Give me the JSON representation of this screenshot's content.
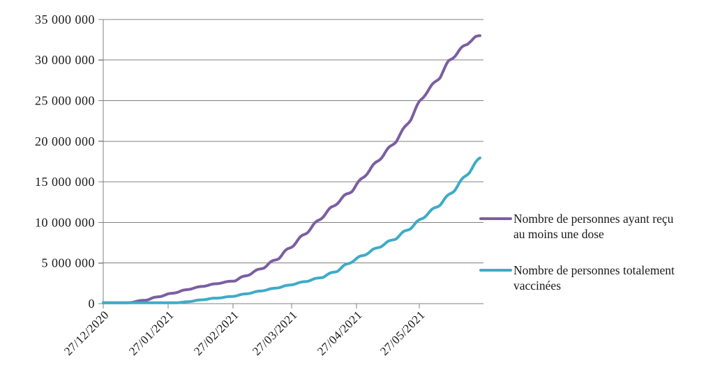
{
  "chart_data": {
    "type": "line",
    "title": "",
    "x_axis": {
      "tick_labels": [
        "27/12/2020",
        "27/01/2021",
        "27/02/2021",
        "27/03/2021",
        "27/04/2021",
        "27/05/2021"
      ],
      "start_date": "27/12/2020",
      "range_days": [
        0,
        180
      ]
    },
    "y_axis": {
      "min": 0,
      "max": 35000000,
      "step": 5000000,
      "tick_labels": [
        "0",
        "5 000 000",
        "10 000 000",
        "15 000 000",
        "20 000 000",
        "25 000 000",
        "30 000 000",
        "35 000 000"
      ],
      "gridlines": true
    },
    "legend": {
      "position": "right",
      "entries": [
        {
          "line1": "Nombre de personnes ayant reçu",
          "line2": "au moins une dose"
        },
        {
          "line1": "Nombre de personnes totalement",
          "line2": "vaccinées"
        }
      ]
    },
    "series": [
      {
        "name": "Nombre de personnes ayant reçu au moins une dose",
        "color": "#7B5EA3",
        "points": [
          [
            0,
            0
          ],
          [
            7,
            5000
          ],
          [
            10,
            45000
          ],
          [
            14,
            190000
          ],
          [
            17,
            320000
          ],
          [
            21,
            480000
          ],
          [
            24,
            700000
          ],
          [
            28,
            960000
          ],
          [
            31,
            1160000
          ],
          [
            35,
            1400000
          ],
          [
            42,
            1850000
          ],
          [
            49,
            2220000
          ],
          [
            56,
            2550000
          ],
          [
            63,
            2850000
          ],
          [
            70,
            3650000
          ],
          [
            77,
            4520000
          ],
          [
            84,
            5700000
          ],
          [
            91,
            7300000
          ],
          [
            98,
            9000000
          ],
          [
            105,
            10800000
          ],
          [
            112,
            12500000
          ],
          [
            119,
            14000000
          ],
          [
            126,
            16100000
          ],
          [
            133,
            18100000
          ],
          [
            140,
            20100000
          ],
          [
            147,
            22800000
          ],
          [
            151,
            24800000
          ],
          [
            154,
            25900000
          ],
          [
            158,
            27100000
          ],
          [
            161,
            28000000
          ],
          [
            165,
            29800000
          ],
          [
            168,
            30600000
          ],
          [
            172,
            31600000
          ],
          [
            175,
            32300000
          ],
          [
            178,
            32800000
          ],
          [
            180,
            33000000
          ]
        ]
      },
      {
        "name": "Nombre de personnes totalement vaccinées",
        "color": "#3EACC7",
        "points": [
          [
            0,
            0
          ],
          [
            10,
            0
          ],
          [
            17,
            1000
          ],
          [
            24,
            8000
          ],
          [
            31,
            45000
          ],
          [
            38,
            160000
          ],
          [
            45,
            400000
          ],
          [
            52,
            640000
          ],
          [
            56,
            720000
          ],
          [
            63,
            950000
          ],
          [
            70,
            1300000
          ],
          [
            77,
            1650000
          ],
          [
            84,
            2000000
          ],
          [
            91,
            2400000
          ],
          [
            98,
            2820000
          ],
          [
            105,
            3300000
          ],
          [
            112,
            4100000
          ],
          [
            119,
            5250000
          ],
          [
            126,
            6200000
          ],
          [
            133,
            7150000
          ],
          [
            140,
            8100000
          ],
          [
            147,
            9400000
          ],
          [
            151,
            10200000
          ],
          [
            154,
            10900000
          ],
          [
            158,
            11650000
          ],
          [
            161,
            12300000
          ],
          [
            165,
            13300000
          ],
          [
            168,
            14100000
          ],
          [
            172,
            15400000
          ],
          [
            175,
            16300000
          ],
          [
            178,
            17300000
          ],
          [
            180,
            17950000
          ]
        ]
      }
    ],
    "colors": {
      "gridline": "#808080",
      "axis": "#808080",
      "text": "#1a1a1a",
      "background": "#ffffff"
    }
  }
}
